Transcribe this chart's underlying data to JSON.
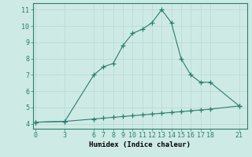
{
  "line1_x": [
    0,
    3,
    6,
    7,
    8,
    9,
    10,
    11,
    12,
    13,
    14,
    15,
    16,
    17,
    18,
    21
  ],
  "line1_y": [
    4.1,
    4.15,
    7.0,
    7.5,
    7.7,
    8.8,
    9.55,
    9.8,
    10.2,
    11.0,
    10.2,
    8.0,
    7.0,
    6.55,
    6.55,
    5.1
  ],
  "line2_x": [
    0,
    3,
    6,
    7,
    8,
    9,
    10,
    11,
    12,
    13,
    14,
    15,
    16,
    17,
    18,
    21
  ],
  "line2_y": [
    4.1,
    4.15,
    4.3,
    4.35,
    4.4,
    4.45,
    4.5,
    4.55,
    4.6,
    4.65,
    4.7,
    4.75,
    4.8,
    4.85,
    4.9,
    5.1
  ],
  "line_color": "#2a7d6e",
  "bg_color": "#ceeae4",
  "grid_major_color": "#b8d8d2",
  "grid_minor_color": "#cce8e2",
  "xlabel": "Humidex (Indice chaleur)",
  "xticks": [
    0,
    3,
    6,
    7,
    8,
    9,
    10,
    11,
    12,
    13,
    14,
    15,
    16,
    17,
    18,
    21
  ],
  "yticks": [
    4,
    5,
    6,
    7,
    8,
    9,
    10,
    11
  ],
  "ylim": [
    3.7,
    11.4
  ],
  "xlim": [
    -0.3,
    21.8
  ],
  "xlabel_fontsize": 6.5,
  "tick_fontsize": 6,
  "marker": "+",
  "linewidth": 0.8,
  "markersize": 4,
  "spine_color": "#2a7d6e"
}
